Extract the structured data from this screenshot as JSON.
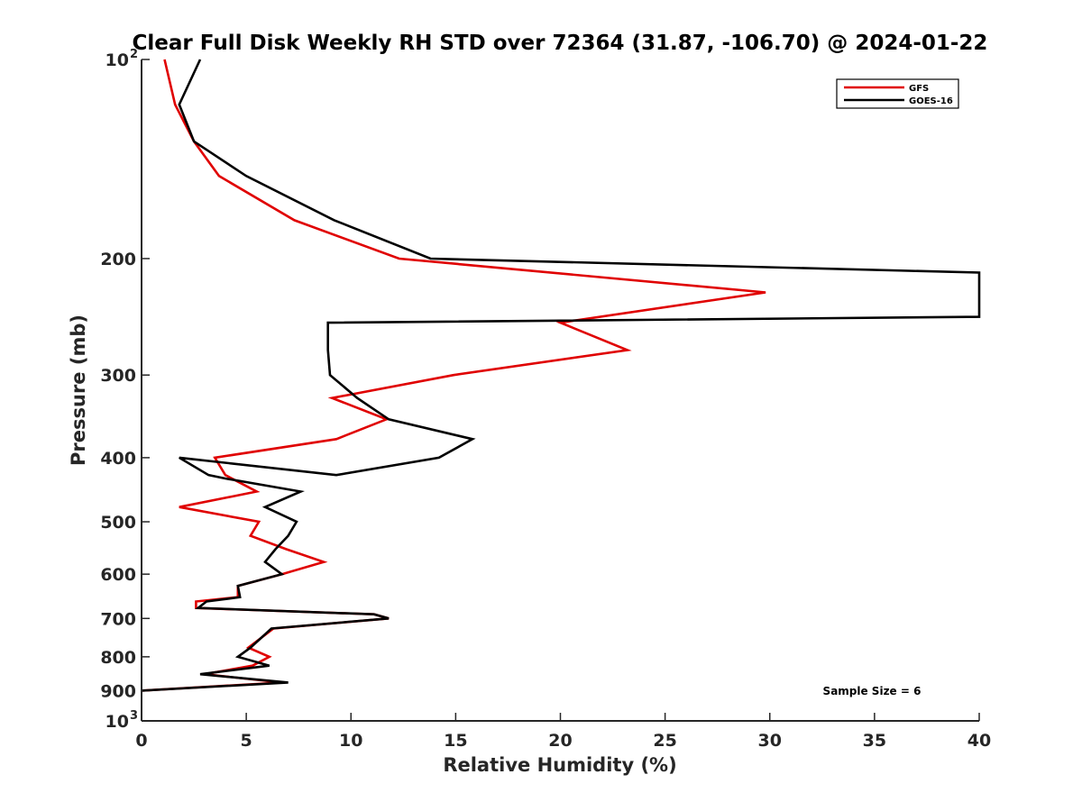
{
  "chart_data": {
    "type": "line",
    "title": "Clear Full Disk Weekly RH STD over 72364 (31.87, -106.70) @ 2024-01-22",
    "xlabel": "Relative Humidity (%)",
    "ylabel": "Pressure (mb)",
    "xlim": [
      0,
      40
    ],
    "ylim": [
      100,
      1000
    ],
    "y_scale": "log",
    "y_reversed": true,
    "x_ticks": [
      0,
      5,
      10,
      15,
      20,
      25,
      30,
      35,
      40
    ],
    "y_ticks": [
      {
        "value": 100,
        "label": "10",
        "sup": "2"
      },
      {
        "value": 200,
        "label": "200",
        "sup": ""
      },
      {
        "value": 300,
        "label": "300",
        "sup": ""
      },
      {
        "value": 400,
        "label": "400",
        "sup": ""
      },
      {
        "value": 500,
        "label": "500",
        "sup": ""
      },
      {
        "value": 600,
        "label": "600",
        "sup": ""
      },
      {
        "value": 700,
        "label": "700",
        "sup": ""
      },
      {
        "value": 800,
        "label": "800",
        "sup": ""
      },
      {
        "value": 900,
        "label": "900",
        "sup": ""
      },
      {
        "value": 1000,
        "label": "10",
        "sup": "3"
      }
    ],
    "grid": false,
    "legend_position": "top-right",
    "annotation": "Sample Size = 6",
    "series": [
      {
        "name": "GFS",
        "color": "#e00000",
        "points": [
          [
            1.1,
            100
          ],
          [
            1.6,
            117
          ],
          [
            2.5,
            133
          ],
          [
            3.7,
            150
          ],
          [
            7.3,
            175
          ],
          [
            12.3,
            200
          ],
          [
            29.8,
            225
          ],
          [
            20.0,
            250
          ],
          [
            23.2,
            275
          ],
          [
            14.9,
            300
          ],
          [
            9.1,
            325
          ],
          [
            11.7,
            350
          ],
          [
            9.3,
            375
          ],
          [
            3.5,
            400
          ],
          [
            4.0,
            425
          ],
          [
            5.5,
            450
          ],
          [
            1.8,
            475
          ],
          [
            5.6,
            500
          ],
          [
            5.2,
            525
          ],
          [
            6.9,
            550
          ],
          [
            8.7,
            575
          ],
          [
            6.7,
            600
          ],
          [
            4.6,
            625
          ],
          [
            4.6,
            650
          ],
          [
            2.6,
            660
          ],
          [
            2.6,
            675
          ],
          [
            11.1,
            690
          ],
          [
            11.8,
            700
          ],
          [
            6.3,
            725
          ],
          [
            5.1,
            775
          ],
          [
            6.1,
            800
          ],
          [
            5.3,
            825
          ],
          [
            3.0,
            850
          ],
          [
            6.7,
            875
          ],
          [
            0,
            900
          ]
        ]
      },
      {
        "name": "GOES-16",
        "color": "#000000",
        "points": [
          [
            2.8,
            100
          ],
          [
            1.8,
            117
          ],
          [
            2.5,
            133
          ],
          [
            5.0,
            150
          ],
          [
            9.2,
            175
          ],
          [
            13.8,
            200
          ],
          [
            40,
            210
          ],
          [
            40,
            245
          ],
          [
            8.9,
            250
          ],
          [
            8.9,
            275
          ],
          [
            9.0,
            300
          ],
          [
            10.3,
            325
          ],
          [
            11.8,
            350
          ],
          [
            15.8,
            375
          ],
          [
            14.2,
            400
          ],
          [
            9.3,
            425
          ],
          [
            1.8,
            400
          ],
          [
            3.2,
            425
          ],
          [
            4.0,
            430
          ],
          [
            7.6,
            450
          ],
          [
            5.9,
            475
          ],
          [
            7.4,
            500
          ],
          [
            7.0,
            525
          ],
          [
            6.4,
            550
          ],
          [
            5.9,
            575
          ],
          [
            6.7,
            600
          ],
          [
            4.6,
            625
          ],
          [
            4.7,
            650
          ],
          [
            3.1,
            660
          ],
          [
            2.7,
            675
          ],
          [
            11.1,
            690
          ],
          [
            11.8,
            700
          ],
          [
            6.2,
            725
          ],
          [
            5.2,
            775
          ],
          [
            4.6,
            800
          ],
          [
            6.1,
            825
          ],
          [
            2.8,
            850
          ],
          [
            7.0,
            875
          ],
          [
            0,
            900
          ]
        ]
      }
    ]
  }
}
